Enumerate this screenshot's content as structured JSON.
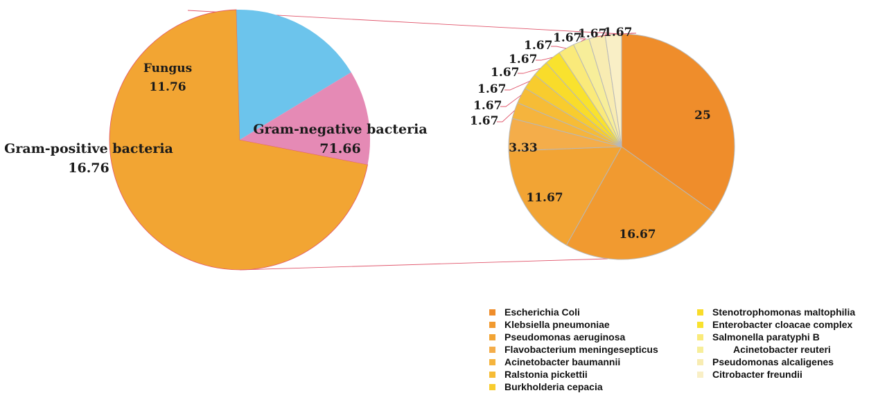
{
  "chart_data": [
    {
      "type": "pie",
      "labels": [
        "Gram-negative bacteria",
        "Gram-positive bacteria",
        "Fungus"
      ],
      "values": [
        71.66,
        16.76,
        11.76
      ],
      "value_labels": [
        "71.66",
        "16.76",
        "11.76"
      ],
      "colors": [
        "#f2a533",
        "#6cc4ec",
        "#e58ab5"
      ],
      "exploded_slice": "Gram-negative bacteria"
    },
    {
      "type": "pie",
      "labels": [
        "Escherichia Coli",
        "Klebsiella pneumoniae",
        "Pseudomonas aeruginosa",
        "Flavobacterium meningesepticus",
        "Acinetobacter baumannii",
        "Ralstonia pickettii",
        "Burkholderia cepacia",
        "Stenotrophomonas maltophilia",
        "Enterobacter cloacae complex",
        "Salmonella paratyphi B",
        "Acinetobacter reuteri",
        "Pseudomonas alcaligenes",
        "Citrobacter freundii"
      ],
      "values": [
        25,
        16.67,
        11.67,
        3.33,
        1.67,
        1.67,
        1.67,
        1.67,
        1.67,
        1.67,
        1.67,
        1.67,
        1.67
      ],
      "value_labels": [
        "25",
        "16.67",
        "11.67",
        "3.33",
        "1.67",
        "1.67",
        "1.67",
        "1.67",
        "1.67",
        "1.67",
        "1.67",
        "1.67",
        "1.67"
      ],
      "colors": [
        "#ef8d2b",
        "#f19a30",
        "#f2a434",
        "#f4ad4a",
        "#f5b43d",
        "#f6bc36",
        "#f8cc2e",
        "#f9dc2a",
        "#f9e22e",
        "#faea7a",
        "#f7ee9a",
        "#f8ecb2",
        "#f9efc6"
      ],
      "legend_position": "bottom-right",
      "legend_columns": 2
    }
  ]
}
